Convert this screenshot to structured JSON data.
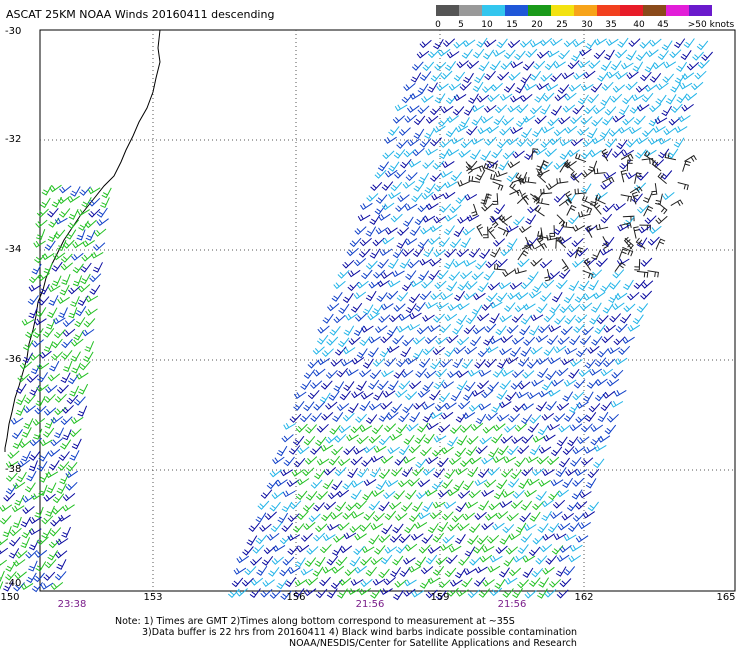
{
  "title": "ASCAT 25KM NOAA Winds 20160411 descending",
  "legend": {
    "units": ">50 knots",
    "labels": [
      "0",
      "5",
      "10",
      "15",
      "20",
      "25",
      "30",
      "35",
      "40",
      "45"
    ],
    "colors": [
      "#555555",
      "#999999",
      "#33c6ee",
      "#1f57d8",
      "#1a9a1a",
      "#f3e210",
      "#f7a319",
      "#f2401e",
      "#e81c28",
      "#8a4a1a",
      "#e21ed8",
      "#6a1acc"
    ]
  },
  "axes": {
    "latitudes": [
      "-30",
      "-32",
      "-34",
      "-36",
      "-38",
      "-40"
    ],
    "longitudes": [
      "150",
      "153",
      "156",
      "159",
      "162",
      "165"
    ]
  },
  "pass_times": [
    "23:38",
    "21:56",
    "21:56"
  ],
  "notes": {
    "line1": "Note: 1) Times are GMT 2)Times along bottom correspond to measurement at ~35S",
    "line2": "3)Data buffer is 22 hrs from 20160411 4) Black wind barbs indicate possible contamination",
    "line3": "NOAA/NESDIS/Center for Satellite Applications and Research"
  },
  "barb_colors": {
    "light": "#22b4e8",
    "medium": "#1040c8",
    "dark": "#0a0aa0",
    "green": "#22c022",
    "contaminated": "#202020"
  }
}
